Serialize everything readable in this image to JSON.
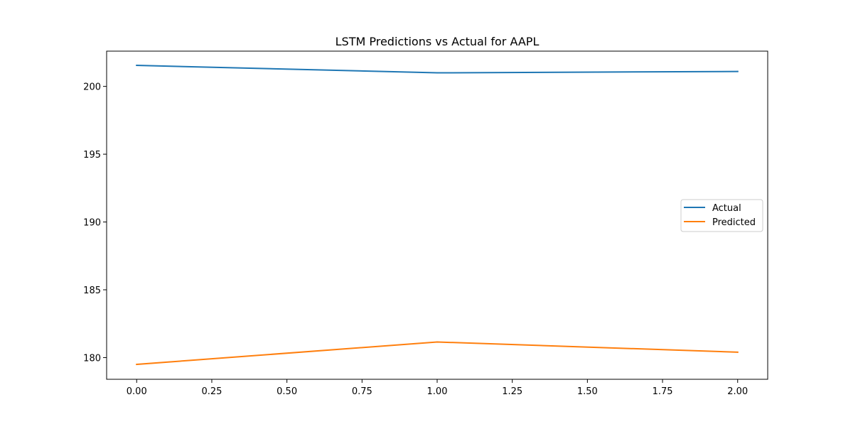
{
  "chart_data": {
    "type": "line",
    "title": "LSTM Predictions vs Actual for AAPL",
    "xlabel": "",
    "ylabel": "",
    "x": [
      0,
      1,
      2
    ],
    "xlim": [
      -0.1,
      2.1
    ],
    "ylim": [
      178.4,
      202.6
    ],
    "xticks": [
      0.0,
      0.25,
      0.5,
      0.75,
      1.0,
      1.25,
      1.5,
      1.75,
      2.0
    ],
    "xtick_labels": [
      "0.00",
      "0.25",
      "0.50",
      "0.75",
      "1.00",
      "1.25",
      "1.50",
      "1.75",
      "2.00"
    ],
    "yticks": [
      180,
      185,
      190,
      195,
      200
    ],
    "ytick_labels": [
      "180",
      "185",
      "190",
      "195",
      "200"
    ],
    "grid": false,
    "legend_position": "center-right",
    "series": [
      {
        "name": "Actual",
        "color": "#1f77b4",
        "values": [
          201.55,
          201.0,
          201.1
        ]
      },
      {
        "name": "Predicted",
        "color": "#ff7f0e",
        "values": [
          179.5,
          181.15,
          180.4
        ]
      }
    ]
  }
}
